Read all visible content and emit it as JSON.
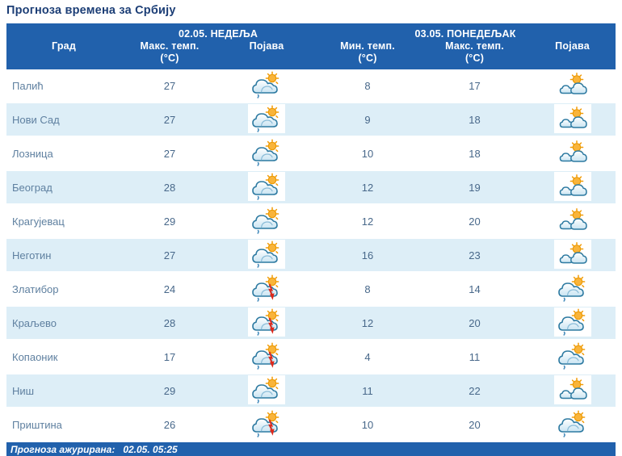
{
  "title": "Прогноза времена за Србију",
  "colors": {
    "header_bg": "#2161ac",
    "alt_row_bg": "#ddeef7",
    "title_text": "#1c3e76",
    "cell_text": "#48688a",
    "sun": "#f9b43a",
    "lightning": "#dd2a1d"
  },
  "header": {
    "day1_label": "02.05. НЕДЕЉА",
    "day2_label": "03.05. ПОНЕДЕЉАК",
    "city": "Град",
    "day1_col1": "Макс. темп.",
    "day1_col2": "Појава",
    "day2_col1": "Мин. темп.",
    "day2_col2": "Макс. темп.",
    "day2_col3": "Појава",
    "unit": "(°C)"
  },
  "rows": [
    {
      "city": "Палић",
      "max1": "27",
      "icon1": "cloud-sun-drizzle",
      "min2": "8",
      "max2": "17",
      "icon2": "clouds-sun"
    },
    {
      "city": "Нови Сад",
      "max1": "27",
      "icon1": "cloud-sun-drizzle",
      "min2": "9",
      "max2": "18",
      "icon2": "clouds-sun"
    },
    {
      "city": "Лозница",
      "max1": "27",
      "icon1": "cloud-sun-drizzle",
      "min2": "10",
      "max2": "18",
      "icon2": "clouds-sun"
    },
    {
      "city": "Београд",
      "max1": "28",
      "icon1": "cloud-sun-drizzle",
      "min2": "12",
      "max2": "19",
      "icon2": "clouds-sun"
    },
    {
      "city": "Крагујевац",
      "max1": "29",
      "icon1": "cloud-sun-drizzle",
      "min2": "12",
      "max2": "20",
      "icon2": "clouds-sun"
    },
    {
      "city": "Неготин",
      "max1": "27",
      "icon1": "cloud-sun-drizzle",
      "min2": "16",
      "max2": "23",
      "icon2": "clouds-sun"
    },
    {
      "city": "Златибор",
      "max1": "24",
      "icon1": "cloud-sun-storm",
      "min2": "8",
      "max2": "14",
      "icon2": "cloud-sun-drizzle"
    },
    {
      "city": "Краљево",
      "max1": "28",
      "icon1": "cloud-sun-storm",
      "min2": "12",
      "max2": "20",
      "icon2": "cloud-sun-drizzle"
    },
    {
      "city": "Копаоник",
      "max1": "17",
      "icon1": "cloud-sun-storm",
      "min2": "4",
      "max2": "11",
      "icon2": "cloud-sun-drizzle"
    },
    {
      "city": "Ниш",
      "max1": "29",
      "icon1": "cloud-sun-drizzle",
      "min2": "11",
      "max2": "22",
      "icon2": "clouds-sun"
    },
    {
      "city": "Приштина",
      "max1": "26",
      "icon1": "cloud-sun-storm",
      "min2": "10",
      "max2": "20",
      "icon2": "cloud-sun-drizzle"
    }
  ],
  "footer": {
    "updated_label": "Прогноза ажурирана:",
    "updated_value": "02.05. 05:25"
  }
}
